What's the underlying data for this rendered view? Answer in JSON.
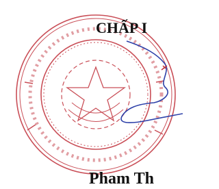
{
  "document": {
    "heading": "CHẤP I",
    "signer": "Pham Th"
  }
}
